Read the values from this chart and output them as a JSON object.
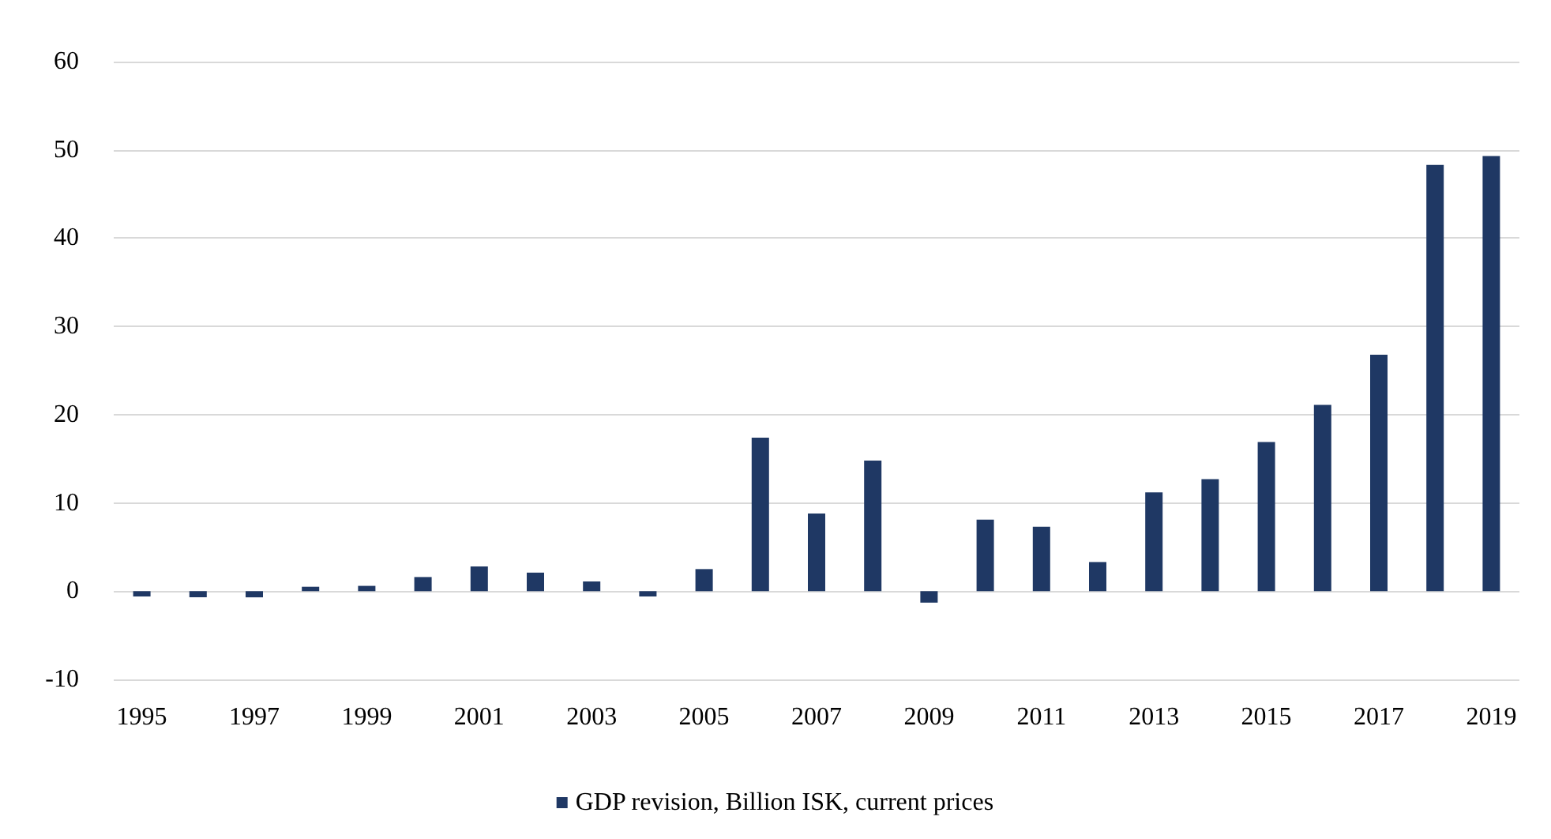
{
  "chart_data": {
    "type": "bar",
    "categories": [
      "1995",
      null,
      "1997",
      null,
      "1999",
      null,
      "2001",
      null,
      "2003",
      null,
      "2005",
      null,
      "2007",
      null,
      "2009",
      null,
      "2011",
      null,
      "2013",
      null,
      "2015",
      null,
      "2017",
      null,
      "2019"
    ],
    "series": [
      {
        "name": "GDP revision, Billion ISK, current prices",
        "color": "#1f3864",
        "values": [
          -0.6,
          -0.7,
          -0.7,
          0.5,
          0.6,
          1.6,
          2.8,
          2.1,
          1.1,
          -0.6,
          2.5,
          17.4,
          8.8,
          14.8,
          -1.3,
          8.1,
          7.3,
          3.3,
          11.2,
          12.7,
          16.9,
          21.1,
          26.8,
          48.3,
          49.3
        ]
      }
    ],
    "ylim": [
      -10,
      60
    ],
    "yticks": [
      -10,
      0,
      10,
      20,
      30,
      40,
      50,
      60
    ],
    "grid": "y",
    "legend": "bottom"
  }
}
